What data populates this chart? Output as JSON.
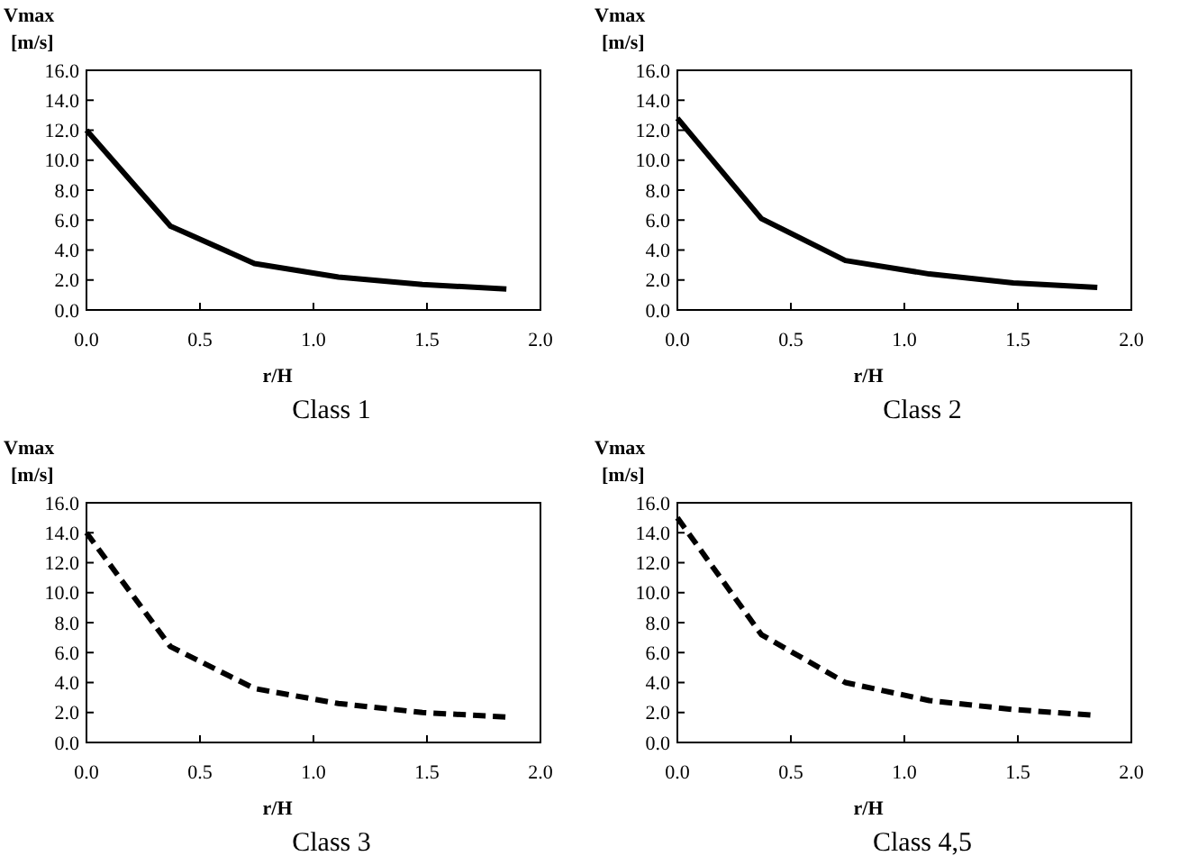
{
  "chart_data": [
    {
      "type": "line",
      "title": "Class 1",
      "xlabel": "r/H",
      "ylabel": "Vmax\n[m/s]",
      "x": [
        0,
        0.37,
        0.74,
        1.11,
        1.48,
        1.85
      ],
      "series": [
        {
          "color": "#000000",
          "values": [
            12.0,
            5.6,
            3.1,
            2.2,
            1.7,
            1.4
          ]
        }
      ],
      "line_style": "solid",
      "xlim": [
        0,
        2
      ],
      "ylim": [
        0,
        16
      ],
      "xticks": [
        {
          "value": 0,
          "label": "0.0"
        },
        {
          "value": 0.5,
          "label": "0.5"
        },
        {
          "value": 1,
          "label": "1.0"
        },
        {
          "value": 1.5,
          "label": "1.5"
        },
        {
          "value": 2,
          "label": "2.0"
        }
      ],
      "yticks": [
        {
          "value": 0,
          "label": "0.0"
        },
        {
          "value": 2,
          "label": "2.0"
        },
        {
          "value": 4,
          "label": "4.0"
        },
        {
          "value": 6,
          "label": "6.0"
        },
        {
          "value": 8,
          "label": "8.0"
        },
        {
          "value": 10,
          "label": "10.0"
        },
        {
          "value": 12,
          "label": "12.0"
        },
        {
          "value": 14,
          "label": "14.0"
        },
        {
          "value": 16,
          "label": "16.0"
        }
      ]
    },
    {
      "type": "line",
      "title": "Class 2",
      "xlabel": "r/H",
      "ylabel": "Vmax\n[m/s]",
      "x": [
        0,
        0.37,
        0.74,
        1.11,
        1.48,
        1.85
      ],
      "series": [
        {
          "color": "#000000",
          "values": [
            12.8,
            6.1,
            3.3,
            2.4,
            1.8,
            1.5
          ]
        }
      ],
      "line_style": "solid",
      "xlim": [
        0,
        2
      ],
      "ylim": [
        0,
        16
      ],
      "xticks": [
        {
          "value": 0,
          "label": "0.0"
        },
        {
          "value": 0.5,
          "label": "0.5"
        },
        {
          "value": 1,
          "label": "1.0"
        },
        {
          "value": 1.5,
          "label": "1.5"
        },
        {
          "value": 2,
          "label": "2.0"
        }
      ],
      "yticks": [
        {
          "value": 0,
          "label": "0.0"
        },
        {
          "value": 2,
          "label": "2.0"
        },
        {
          "value": 4,
          "label": "4.0"
        },
        {
          "value": 6,
          "label": "6.0"
        },
        {
          "value": 8,
          "label": "8.0"
        },
        {
          "value": 10,
          "label": "10.0"
        },
        {
          "value": 12,
          "label": "12.0"
        },
        {
          "value": 14,
          "label": "14.0"
        },
        {
          "value": 16,
          "label": "16.0"
        }
      ]
    },
    {
      "type": "line",
      "title": "Class 3",
      "xlabel": "r/H",
      "ylabel": "Vmax\n[m/s]",
      "x": [
        0,
        0.37,
        0.74,
        1.11,
        1.48,
        1.85
      ],
      "series": [
        {
          "color": "#000000",
          "values": [
            14.0,
            6.4,
            3.6,
            2.6,
            2.0,
            1.7
          ]
        }
      ],
      "line_style": "dashed",
      "xlim": [
        0,
        2
      ],
      "ylim": [
        0,
        16
      ],
      "xticks": [
        {
          "value": 0,
          "label": "0.0"
        },
        {
          "value": 0.5,
          "label": "0.5"
        },
        {
          "value": 1,
          "label": "1.0"
        },
        {
          "value": 1.5,
          "label": "1.5"
        },
        {
          "value": 2,
          "label": "2.0"
        }
      ],
      "yticks": [
        {
          "value": 0,
          "label": "0.0"
        },
        {
          "value": 2,
          "label": "2.0"
        },
        {
          "value": 4,
          "label": "4.0"
        },
        {
          "value": 6,
          "label": "6.0"
        },
        {
          "value": 8,
          "label": "8.0"
        },
        {
          "value": 10,
          "label": "10.0"
        },
        {
          "value": 12,
          "label": "12.0"
        },
        {
          "value": 14,
          "label": "14.0"
        },
        {
          "value": 16,
          "label": "16.0"
        }
      ]
    },
    {
      "type": "line",
      "title": "Class 4,5",
      "xlabel": "r/H",
      "ylabel": "Vmax\n[m/s]",
      "x": [
        0,
        0.37,
        0.74,
        1.11,
        1.48,
        1.85
      ],
      "series": [
        {
          "color": "#000000",
          "values": [
            15.0,
            7.2,
            4.0,
            2.8,
            2.2,
            1.8
          ]
        }
      ],
      "line_style": "dashed",
      "xlim": [
        0,
        2
      ],
      "ylim": [
        0,
        16
      ],
      "xticks": [
        {
          "value": 0,
          "label": "0.0"
        },
        {
          "value": 0.5,
          "label": "0.5"
        },
        {
          "value": 1,
          "label": "1.0"
        },
        {
          "value": 1.5,
          "label": "1.5"
        },
        {
          "value": 2,
          "label": "2.0"
        }
      ],
      "yticks": [
        {
          "value": 0,
          "label": "0.0"
        },
        {
          "value": 2,
          "label": "2.0"
        },
        {
          "value": 4,
          "label": "4.0"
        },
        {
          "value": 6,
          "label": "6.0"
        },
        {
          "value": 8,
          "label": "8.0"
        },
        {
          "value": 10,
          "label": "10.0"
        },
        {
          "value": 12,
          "label": "12.0"
        },
        {
          "value": 14,
          "label": "14.0"
        },
        {
          "value": 16,
          "label": "16.0"
        }
      ]
    }
  ]
}
